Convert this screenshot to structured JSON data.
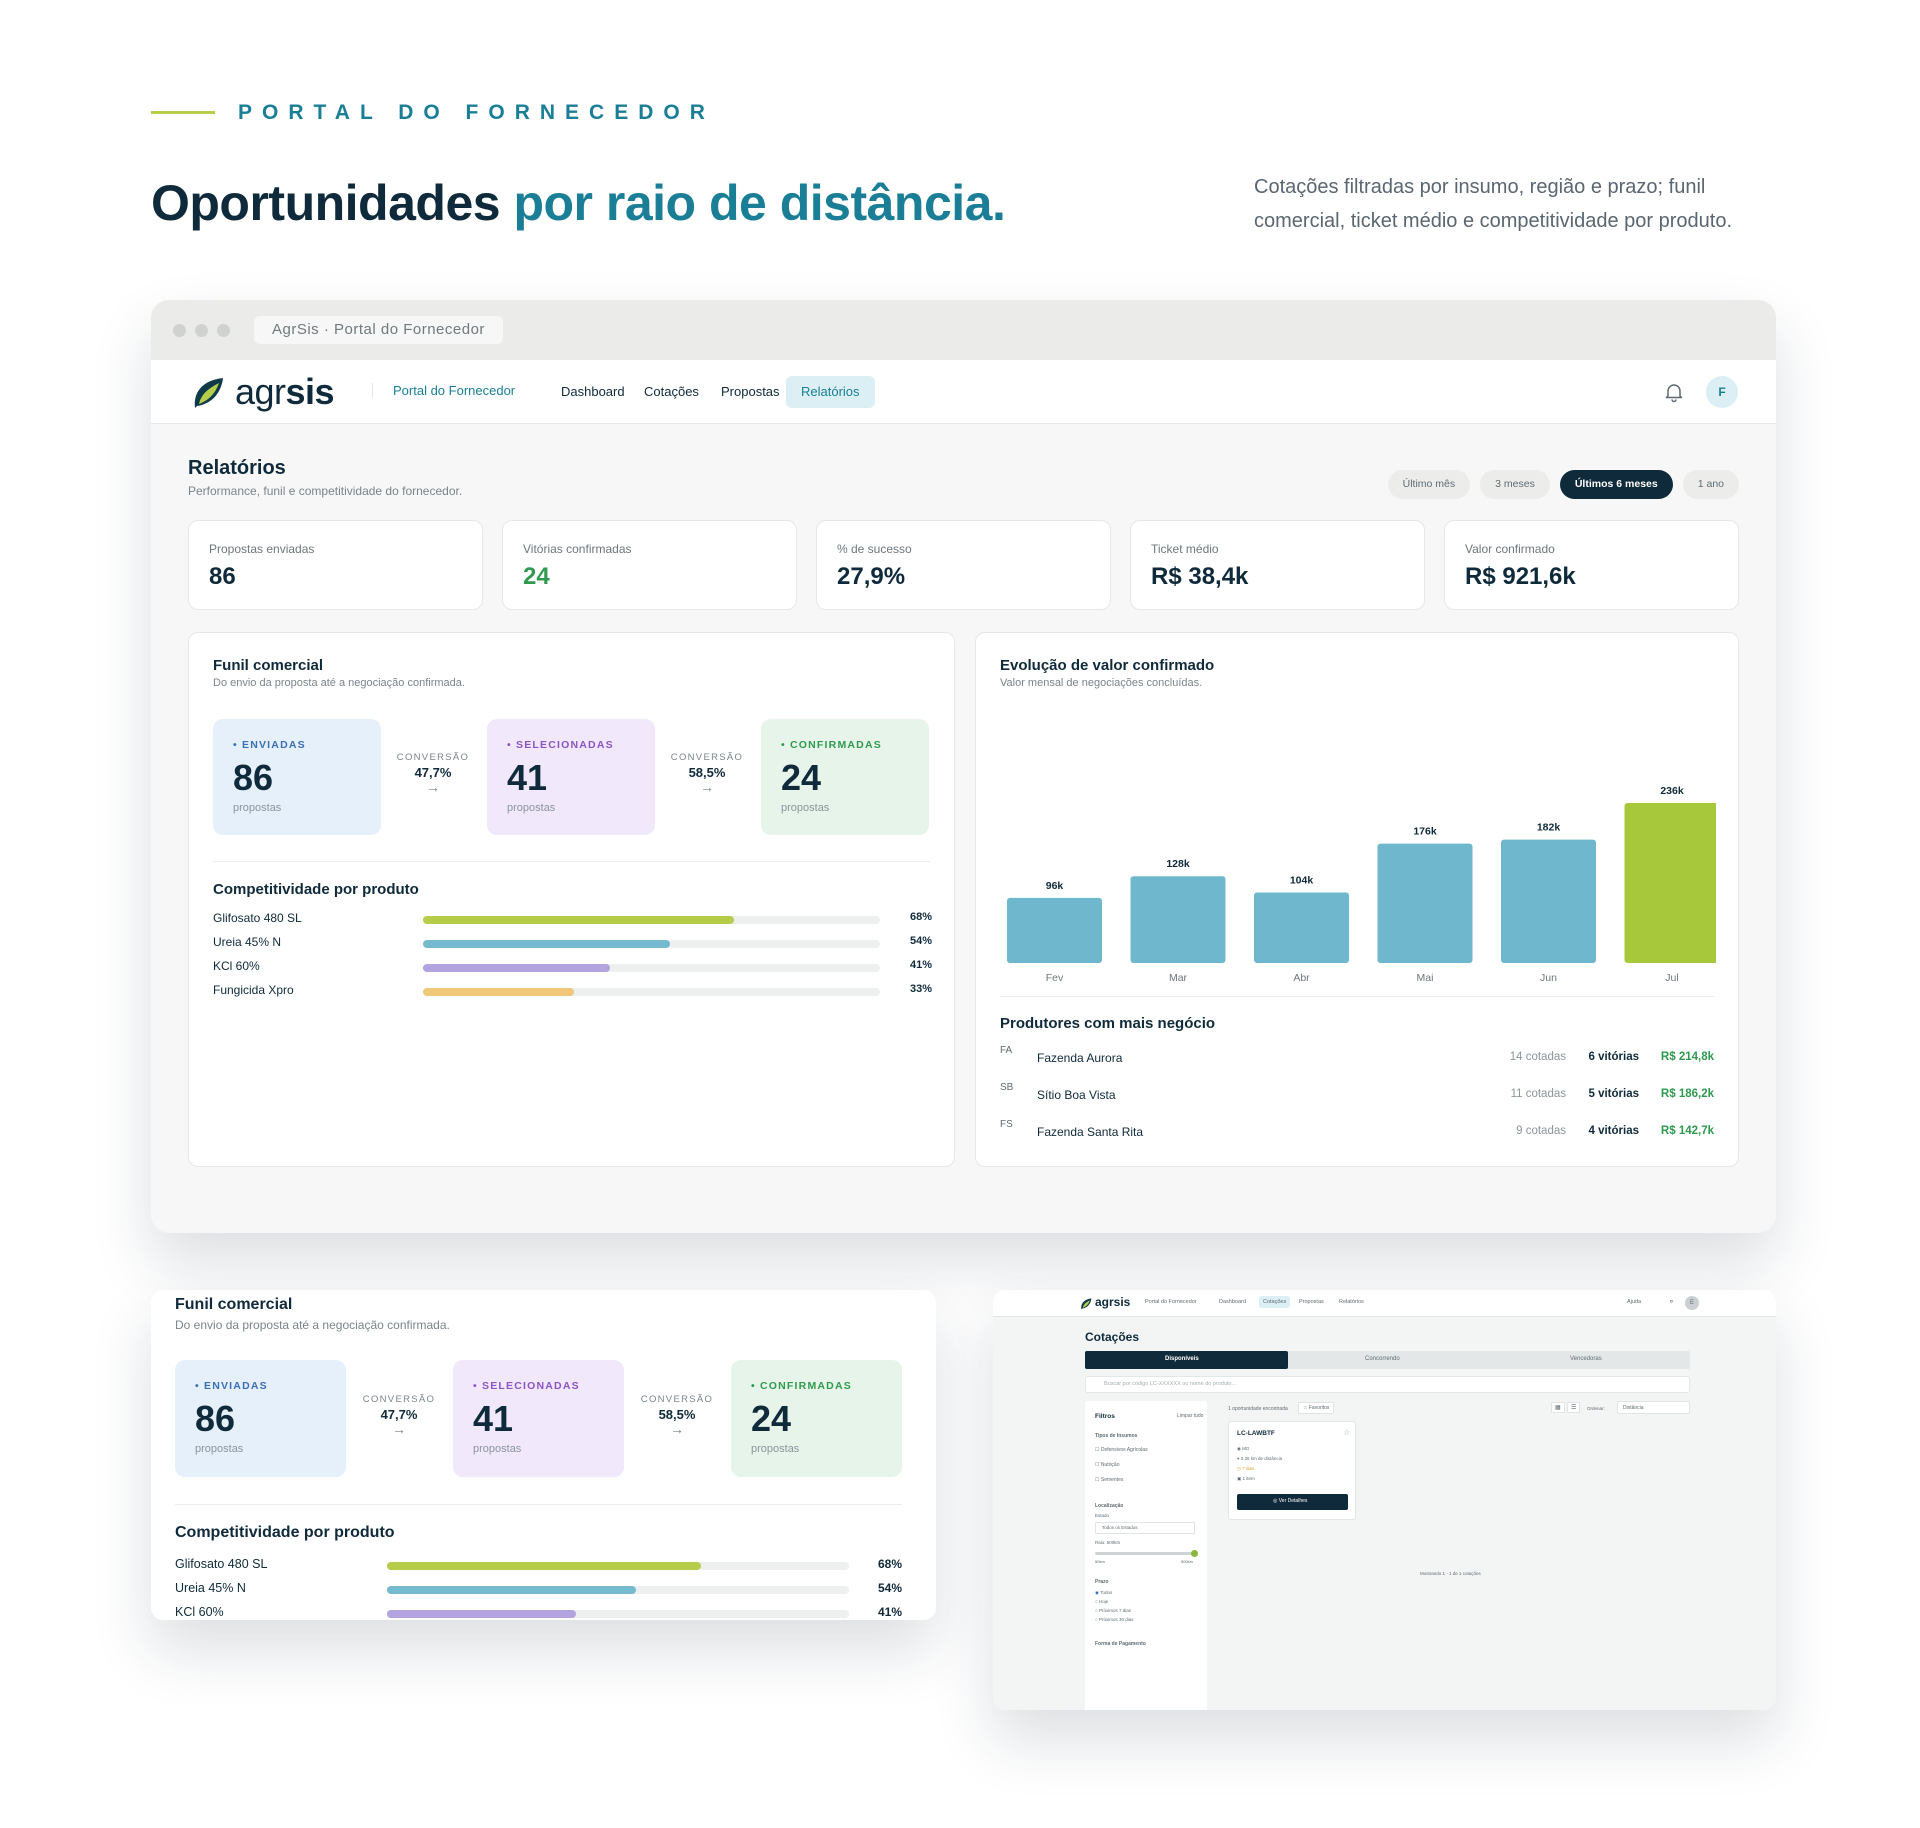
{
  "hero": {
    "eyebrow": "PORTAL DO FORNECEDOR",
    "title_main": "Oportunidades ",
    "title_accent": "por raio de distância.",
    "description": "Cotações filtradas por insumo, região e prazo; funil comercial, ticket médio e competitividade por produto."
  },
  "window": {
    "tab_title": "AgrSis · Portal do Fornecedor",
    "logo_light": "agr",
    "logo_bold": "sis",
    "portal_link": "Portal do Fornecedor",
    "nav": [
      "Dashboard",
      "Cotações",
      "Propostas",
      "Relatórios"
    ],
    "avatar": "F",
    "page_title": "Relatórios",
    "page_subtitle": "Performance, funil e competitividade do fornecedor.",
    "periods": [
      "Último mês",
      "3 meses",
      "Últimos 6 meses",
      "1 ano"
    ],
    "active_period": "Últimos 6 meses"
  },
  "kpis": [
    {
      "label": "Propostas enviadas",
      "value": "86"
    },
    {
      "label": "Vitórias confirmadas",
      "value": "24"
    },
    {
      "label": "% de sucesso",
      "value": "27,9%"
    },
    {
      "label": "Ticket médio",
      "value": "R$ 38,4k"
    },
    {
      "label": "Valor confirmado",
      "value": "R$ 921,6k"
    }
  ],
  "funnel": {
    "title": "Funil comercial",
    "subtitle": "Do envio da proposta até a negociação confirmada.",
    "stages": [
      {
        "label": "• ENVIADAS",
        "value": "86",
        "unit": "propostas"
      },
      {
        "label": "• SELECIONADAS",
        "value": "41",
        "unit": "propostas"
      },
      {
        "label": "• CONFIRMADAS",
        "value": "24",
        "unit": "propostas"
      }
    ],
    "conversions": [
      {
        "label": "CONVERSÃO",
        "value": "47,7%",
        "arrow": "→"
      },
      {
        "label": "CONVERSÃO",
        "value": "58,5%",
        "arrow": "→"
      }
    ]
  },
  "competitiveness": {
    "title": "Competitividade por produto",
    "products": [
      {
        "name": "Glifosato 480 SL",
        "pct": 68,
        "label": "68%",
        "color": "#b5cd4a"
      },
      {
        "name": "Ureia 45% N",
        "pct": 54,
        "label": "54%",
        "color": "#76bbcd"
      },
      {
        "name": "KCl 60%",
        "pct": 41,
        "label": "41%",
        "color": "#b3a3df"
      },
      {
        "name": "Fungicida Xpro",
        "pct": 33,
        "label": "33%",
        "color": "#efc879"
      }
    ]
  },
  "chart_data": {
    "type": "bar",
    "title": "Evolução de valor confirmado",
    "subtitle": "Valor mensal de negociações concluídas.",
    "categories": [
      "Fev",
      "Mar",
      "Abr",
      "Mai",
      "Jun",
      "Jul"
    ],
    "values": [
      96,
      128,
      104,
      176,
      182,
      236
    ],
    "value_labels": [
      "96k",
      "128k",
      "104k",
      "176k",
      "182k",
      "236k"
    ],
    "highlight_index": 5,
    "colors": {
      "normal": "#6fb7cd",
      "highlight": "#a8c83c"
    },
    "ylim": [
      0,
      236
    ]
  },
  "producers": {
    "title": "Produtores com mais negócio",
    "rows": [
      {
        "initials": "FA",
        "name": "Fazenda Aurora",
        "cotadas": "14 cotadas",
        "vitorias": "6 vitórias",
        "valor": "R$ 214,8k"
      },
      {
        "initials": "SB",
        "name": "Sítio Boa Vista",
        "cotadas": "11 cotadas",
        "vitorias": "5 vitórias",
        "valor": "R$ 186,2k"
      },
      {
        "initials": "FS",
        "name": "Fazenda Santa Rita",
        "cotadas": "9 cotadas",
        "vitorias": "4 vitórias",
        "valor": "R$ 142,7k"
      }
    ]
  },
  "mini_cotacoes": {
    "logo": "agrsis",
    "portal": "Portal do Fornecedor",
    "nav": [
      "Dashboard",
      "Cotações",
      "Propostas",
      "Relatórios"
    ],
    "help": "Ajuda",
    "avatar": "E",
    "title": "Cotações",
    "tabs": [
      "Disponíveis",
      "Concorrendo",
      "Vencedoras"
    ],
    "search_placeholder": "Buscar por código LC-XXXXXX ou nome do produto...",
    "filters_title": "Filtros",
    "clear_all": "Limpar tudo",
    "insumo_title": "Tipos de Insumos",
    "insumos": [
      "Defensivos Agrícolas",
      "Nutrição",
      "Sementes"
    ],
    "location_title": "Localização",
    "state_label": "Estado",
    "state_value": "Todos os Estados",
    "radius_label": "Raio: 500km",
    "radius_min": "50km",
    "radius_max": "500km",
    "deadline_title": "Prazo",
    "deadlines": [
      "Todos",
      "Hoje",
      "Próximos 7 dias",
      "Próximos 30 dias"
    ],
    "payment_title": "Forma de Pagamento",
    "found": "1 oportunidade encontrada",
    "favorites": "☆ Favoritos",
    "sort_label": "Ordenar:",
    "sort_value": "Distância",
    "card_code": "LC-LAWBTF",
    "card_state": "MG",
    "card_distance": "0.26 km de distância",
    "card_days": "7 dias",
    "card_items": "1 item",
    "card_button": "◎ Ver Detalhes",
    "showing": "Mostrando 1 - 1 de 1 cotações"
  }
}
